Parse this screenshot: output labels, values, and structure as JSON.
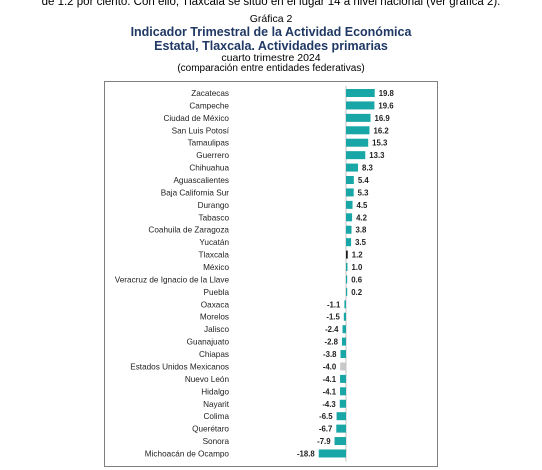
{
  "intro_text": "de 1.2 por ciento. Con ello, Tlaxcala se situó en el lugar 14 a nivel nacional (ver gráfica 2).",
  "figure": {
    "label": "Gráfica 2",
    "title_line1": "Indicador Trimestral de la Actividad Económica",
    "title_line2": "Estatal, Tlaxcala. Actividades primarias",
    "subtitle": "cuarto trimestre 2024",
    "note": "(comparación entre entidades federativas)"
  },
  "colors": {
    "default_bar": "#19a6a6",
    "highlight_bar": "#1a1a1a",
    "national_bar": "#c8c8c8",
    "frame": "#7f7f7f"
  },
  "chart_data": {
    "type": "bar",
    "orientation": "horizontal",
    "title": "Indicador Trimestral de la Actividad Económica Estatal, Tlaxcala. Actividades primarias",
    "subtitle": "cuarto trimestre 2024",
    "xlabel": "",
    "ylabel": "",
    "grid": false,
    "value_labels": true,
    "highlight": {
      "Tlaxcala": "highlight",
      "Estados Unidos Mexicanos": "national"
    },
    "categories": [
      "Zacatecas",
      "Campeche",
      "Ciudad de México",
      "San Luis Potosí",
      "Tamaulipas",
      "Guerrero",
      "Chihuahua",
      "Aguascalientes",
      "Baja California Sur",
      "Durango",
      "Tabasco",
      "Coahuila de Zaragoza",
      "Yucatán",
      "Tlaxcala",
      "México",
      "Veracruz de Ignacio de la Llave",
      "Puebla",
      "Oaxaca",
      "Morelos",
      "Jalisco",
      "Guanajuato",
      "Chiapas",
      "Estados Unidos Mexicanos",
      "Nuevo León",
      "Hidalgo",
      "Nayarit",
      "Colima",
      "Querétaro",
      "Sonora",
      "Michoacán de Ocampo"
    ],
    "values": [
      19.8,
      19.6,
      16.9,
      16.2,
      15.3,
      13.3,
      8.3,
      5.4,
      5.3,
      4.5,
      4.2,
      3.8,
      3.5,
      1.2,
      1.0,
      0.6,
      0.2,
      -1.1,
      -1.5,
      -2.4,
      -2.8,
      -3.8,
      -4.0,
      -4.1,
      -4.1,
      -4.3,
      -6.5,
      -6.7,
      -7.9,
      -18.8
    ],
    "value_labels_text": [
      "19.8",
      "19.6",
      "16.9",
      "16.2",
      "15.3",
      "13.3",
      "8.3",
      "5.4",
      "5.3",
      "4.5",
      "4.2",
      "3.8",
      "3.5",
      "1.2",
      "1.0",
      "0.6",
      "0.2",
      "-1.1",
      "-1.5",
      "-2.4",
      "-2.8",
      "-3.8",
      "-4.0",
      "-4.1",
      "-4.1",
      "-4.3",
      "-6.5",
      "-6.7",
      "-7.9",
      "-18.8"
    ]
  }
}
